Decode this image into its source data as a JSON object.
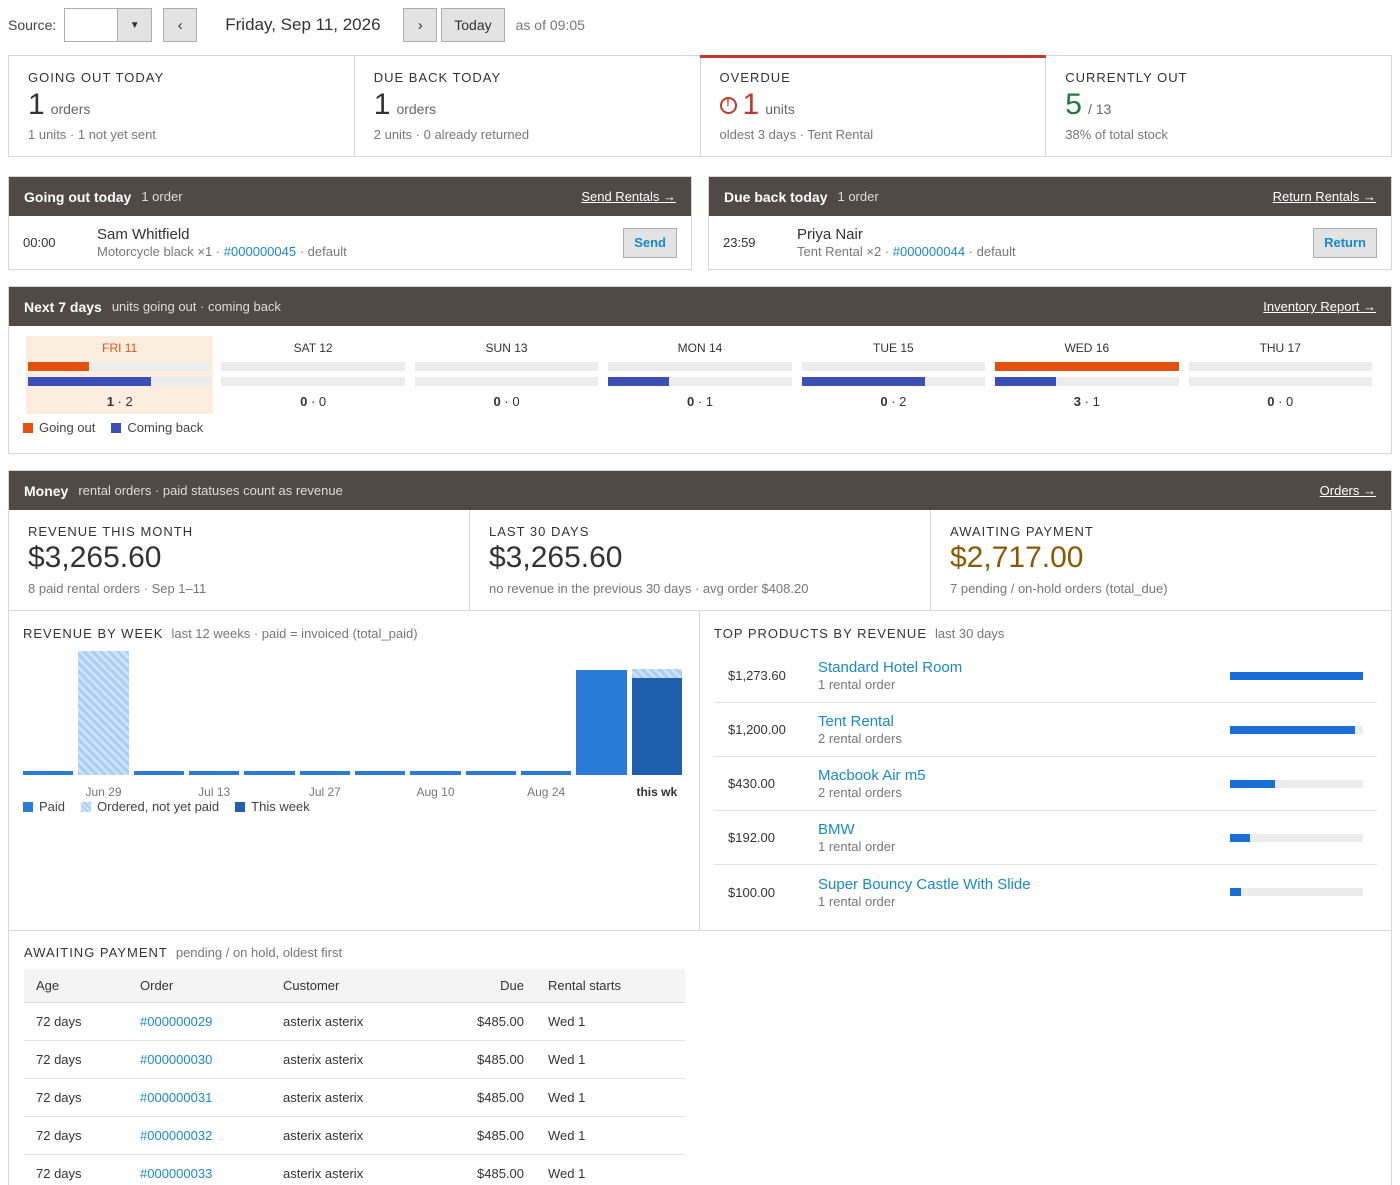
{
  "topbar": {
    "source_label": "Source:",
    "source_value": "",
    "prev_label": "‹",
    "date": "Friday, Sep 11, 2026",
    "next_label": "›",
    "today_label": "Today",
    "as_of": "as of 09:05"
  },
  "kpis": [
    {
      "label": "GOING OUT TODAY",
      "value": "1",
      "unit": "orders",
      "sub": "1 units · 1 not yet sent"
    },
    {
      "label": "DUE BACK TODAY",
      "value": "1",
      "unit": "orders",
      "sub": "2 units · 0 already returned"
    },
    {
      "label": "OVERDUE",
      "value": "1",
      "unit": "units",
      "sub": "oldest 3 days · Tent Rental",
      "icon": "alert-circle-icon",
      "color": "#c0392b"
    },
    {
      "label": "CURRENTLY OUT",
      "value": "5",
      "unit": "/ 13",
      "sub": "38% of total stock",
      "color": "#1e7a3c"
    }
  ],
  "going_out": {
    "title": "Going out today",
    "meta": "1 order",
    "link": "Send Rentals →",
    "row": {
      "time": "00:00",
      "name": "Sam Whitfield",
      "item": "Motorcycle black ×1 · ",
      "order": "#000000045",
      "rest": " · default",
      "action": "Send"
    }
  },
  "due_back": {
    "title": "Due back today",
    "meta": "1 order",
    "link": "Return Rentals →",
    "row": {
      "time": "23:59",
      "name": "Priya Nair",
      "item": "Tent Rental ×2 · ",
      "order": "#000000044",
      "rest": " · default",
      "action": "Return"
    }
  },
  "next7": {
    "title": "Next 7 days",
    "meta": "units going out · coming back",
    "link": "Inventory Report →",
    "legend_out": "Going out",
    "legend_back": "Coming back",
    "colors": {
      "out": "#e4500e",
      "back": "#3b4fb5"
    },
    "days": [
      {
        "name": "FRI 11",
        "out": 1,
        "back": 2,
        "out_fill": 0.33,
        "back_fill": 0.67,
        "today": true
      },
      {
        "name": "SAT 12",
        "out": 0,
        "back": 0,
        "out_fill": 0,
        "back_fill": 0
      },
      {
        "name": "SUN 13",
        "out": 0,
        "back": 0,
        "out_fill": 0,
        "back_fill": 0
      },
      {
        "name": "MON 14",
        "out": 0,
        "back": 1,
        "out_fill": 0,
        "back_fill": 0.33
      },
      {
        "name": "TUE 15",
        "out": 0,
        "back": 2,
        "out_fill": 0,
        "back_fill": 0.67
      },
      {
        "name": "WED 16",
        "out": 3,
        "back": 1,
        "out_fill": 1.0,
        "back_fill": 0.33
      },
      {
        "name": "THU 17",
        "out": 0,
        "back": 0,
        "out_fill": 0,
        "back_fill": 0
      }
    ]
  },
  "money": {
    "title": "Money",
    "meta": "rental orders · paid statuses count as revenue",
    "link": "Orders →",
    "tiles": [
      {
        "label": "REVENUE THIS MONTH",
        "amount": "$3,265.60",
        "sub": "8 paid rental orders · Sep 1–11"
      },
      {
        "label": "LAST 30 DAYS",
        "amount": "$3,265.60",
        "sub": "no revenue in the previous 30 days · avg order $408.20"
      },
      {
        "label": "AWAITING PAYMENT",
        "amount": "$2,717.00",
        "sub": "7 pending / on-hold orders (total_due)",
        "color": "#8a5a00"
      }
    ]
  },
  "revenue_by_week": {
    "title": "REVENUE BY WEEK",
    "meta": "last 12 weeks · paid = invoiced (total_paid)",
    "legend": {
      "paid": "Paid",
      "unpaid": "Ordered, not yet paid",
      "thisweek": "This week"
    },
    "tick_labels": [
      "Jun 29",
      "Jul 13",
      "Jul 27",
      "Aug 10",
      "Aug 24",
      "this wk"
    ]
  },
  "chart_data": {
    "type": "bar",
    "categories": [
      "",
      "Jun 29",
      "",
      "Jul 13",
      "",
      "Jul 27",
      "",
      "Aug 10",
      "",
      "Aug 24",
      "",
      "this wk"
    ],
    "series": [
      {
        "name": "Paid",
        "values": [
          0,
          0,
          0,
          0,
          0,
          0,
          0,
          0,
          0,
          0,
          1700,
          1565
        ]
      },
      {
        "name": "Ordered, not yet paid",
        "values": [
          0,
          2000,
          0,
          0,
          0,
          0,
          0,
          0,
          0,
          0,
          0,
          150
        ]
      }
    ],
    "highlight_last": "This week",
    "ylim": [
      0,
      2000
    ],
    "colors": {
      "paid": "#2a7ad8",
      "this_week": "#1e5fb0",
      "unpaid": "#a9cdf3"
    }
  },
  "top_products": {
    "title": "TOP PRODUCTS BY REVENUE",
    "meta": "last 30 days",
    "items": [
      {
        "amount": "$1,273.60",
        "name": "Standard Hotel Room",
        "count": "1 rental order",
        "fill": 1.0
      },
      {
        "amount": "$1,200.00",
        "name": "Tent Rental",
        "count": "2 rental orders",
        "fill": 0.94
      },
      {
        "amount": "$430.00",
        "name": "Macbook Air m5",
        "count": "2 rental orders",
        "fill": 0.34
      },
      {
        "amount": "$192.00",
        "name": "BMW",
        "count": "1 rental order",
        "fill": 0.15
      },
      {
        "amount": "$100.00",
        "name": "Super Bouncy Castle With Slide",
        "count": "1 rental order",
        "fill": 0.08
      }
    ]
  },
  "awaiting_table": {
    "title": "AWAITING PAYMENT",
    "meta": "pending / on hold, oldest first",
    "columns": [
      "Age",
      "Order",
      "Customer",
      "Due",
      "Rental starts"
    ],
    "rows": [
      {
        "age": "72 days",
        "order": "#000000029",
        "customer": "asterix asterix",
        "due": "$485.00",
        "starts": "Wed 1"
      },
      {
        "age": "72 days",
        "order": "#000000030",
        "customer": "asterix asterix",
        "due": "$485.00",
        "starts": "Wed 1"
      },
      {
        "age": "72 days",
        "order": "#000000031",
        "customer": "asterix asterix",
        "due": "$485.00",
        "starts": "Wed 1"
      },
      {
        "age": "72 days",
        "order": "#000000032",
        "customer": "asterix asterix",
        "due": "$485.00",
        "starts": "Wed 1"
      },
      {
        "age": "72 days",
        "order": "#000000033",
        "customer": "asterix asterix",
        "due": "$485.00",
        "starts": "Wed 1"
      }
    ]
  }
}
